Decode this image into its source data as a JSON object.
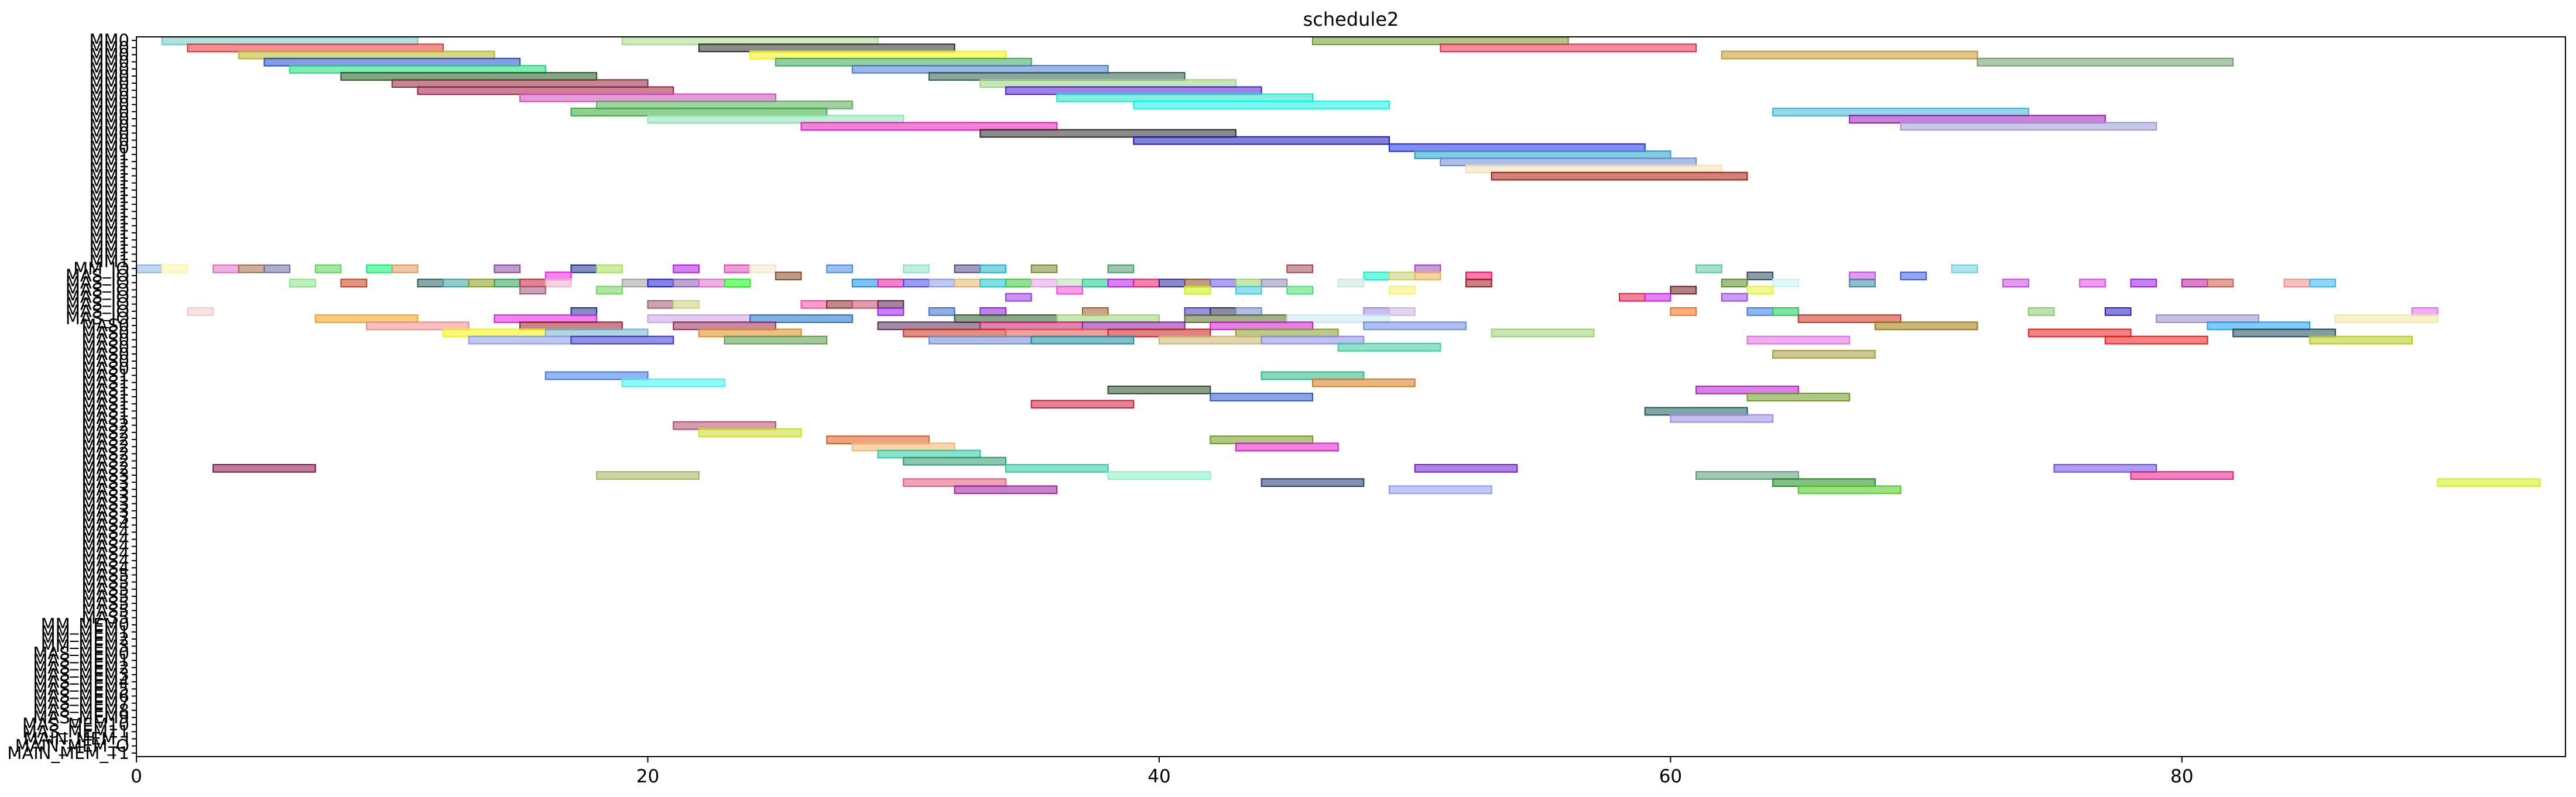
{
  "chart_data": {
    "type": "gantt",
    "title": "schedule2",
    "xlabel": "",
    "ylabel": "",
    "xlim": [
      0,
      95
    ],
    "grid": false,
    "x_ticks": [
      0,
      20,
      40,
      60,
      80
    ],
    "x_tick_labels": [
      "0",
      "20",
      "40",
      "60",
      "80"
    ],
    "rows": [
      "MM0",
      "MM0",
      "MM0",
      "MM0",
      "MM0",
      "MM0",
      "MM0",
      "MM0",
      "MM0",
      "MM0",
      "MM0",
      "MM0",
      "MM0",
      "MM0",
      "MM0",
      "MM0",
      "MM1",
      "MM1",
      "MM1",
      "MM1",
      "MM1",
      "MM1",
      "MM1",
      "MM1",
      "MM1",
      "MM1",
      "MM1",
      "MM1",
      "MM1",
      "MM1",
      "MM1",
      "MM1",
      "MM_IO",
      "MAS_IO",
      "MAS_IO",
      "MAS_IO",
      "MAS_IO",
      "MAS_IO",
      "MAS_IO",
      "MAS_IO",
      "MAS0",
      "MAS0",
      "MAS0",
      "MAS0",
      "MAS0",
      "MAS0",
      "MAS0",
      "MAS1",
      "MAS1",
      "MAS1",
      "MAS1",
      "MAS1",
      "MAS1",
      "MAS1",
      "MAS2",
      "MAS2",
      "MAS2",
      "MAS2",
      "MAS2",
      "MAS2",
      "MAS2",
      "MAS3",
      "MAS3",
      "MAS3",
      "MAS3",
      "MAS3",
      "MAS3",
      "MAS3",
      "MAS4",
      "MAS4",
      "MAS4",
      "MAS4",
      "MAS4",
      "MAS4",
      "MAS4",
      "MAS5",
      "MAS5",
      "MAS5",
      "MAS5",
      "MAS5",
      "MAS5",
      "MAS5",
      "MM_MEM0",
      "MM_MEM1",
      "MM_MEM2",
      "MM_MEM3",
      "MAS_MEM0",
      "MAS_MEM1",
      "MAS_MEM2",
      "MAS_MEM3",
      "MAS_MEM4",
      "MAS_MEM5",
      "MAS_MEM6",
      "MAS_MEM7",
      "MAS_MEM8",
      "MAS_MEM9",
      "MAS_MEM10",
      "MAS_MEM11",
      "MAIN_MEM_I",
      "MAIN_MEM_O",
      "MAIN_MEM_T1"
    ],
    "tasks": [
      [
        0,
        1,
        11,
        "#6fc9c9"
      ],
      [
        0,
        19,
        29,
        "#a6d98a"
      ],
      [
        0,
        46,
        56,
        "#6b9a32"
      ],
      [
        1,
        2,
        12,
        "#e63434"
      ],
      [
        1,
        22,
        32,
        "#2b2b2b"
      ],
      [
        1,
        51,
        61,
        "#e0304e"
      ],
      [
        2,
        4,
        14,
        "#b5b52a"
      ],
      [
        2,
        24,
        34,
        "#f2f20f"
      ],
      [
        2,
        62,
        72,
        "#c4972e"
      ],
      [
        3,
        5,
        15,
        "#1f4fc9"
      ],
      [
        3,
        25,
        35,
        "#3aa85a"
      ],
      [
        3,
        72,
        82,
        "#6b9e68"
      ],
      [
        4,
        6,
        16,
        "#1fd97a"
      ],
      [
        4,
        28,
        38,
        "#4a7ad1"
      ],
      [
        5,
        8,
        18,
        "#1e5e1e"
      ],
      [
        5,
        31,
        41,
        "#2b5c4a"
      ],
      [
        6,
        10,
        20,
        "#8a2a3a"
      ],
      [
        6,
        33,
        43,
        "#9ad184"
      ],
      [
        7,
        11,
        21,
        "#9e1e40"
      ],
      [
        7,
        34,
        44,
        "#4a1ed1"
      ],
      [
        8,
        15,
        25,
        "#d14aba"
      ],
      [
        8,
        36,
        46,
        "#1fe3c9"
      ],
      [
        9,
        18,
        28,
        "#5aab5a"
      ],
      [
        9,
        39,
        49,
        "#0ff2e6"
      ],
      [
        10,
        17,
        27,
        "#3aa83a"
      ],
      [
        10,
        64,
        74,
        "#3ab5d1"
      ],
      [
        11,
        20,
        30,
        "#8ae3b5"
      ],
      [
        11,
        67,
        77,
        "#9a1eb5"
      ],
      [
        12,
        26,
        36,
        "#e61eb5"
      ],
      [
        12,
        69,
        79,
        "#9a9ad1"
      ],
      [
        13,
        33,
        43,
        "#2b2b2b"
      ],
      [
        14,
        39,
        49,
        "#1a1ab5"
      ],
      [
        15,
        49,
        59,
        "#1f2fe3"
      ],
      [
        16,
        50,
        60,
        "#1fa0c9"
      ],
      [
        17,
        51,
        61,
        "#6a8ad1"
      ],
      [
        18,
        52,
        62,
        "#f2e0b5"
      ],
      [
        19,
        53,
        63,
        "#a01e0f"
      ],
      [
        32,
        0,
        1,
        "#8ab5e3"
      ],
      [
        32,
        1,
        2,
        "#fff5a0"
      ],
      [
        32,
        3,
        4,
        "#e06ec9"
      ],
      [
        32,
        4,
        5,
        "#a06e4a"
      ],
      [
        32,
        5,
        6,
        "#6e6e9e"
      ],
      [
        32,
        7,
        8,
        "#5ad15a"
      ],
      [
        32,
        9,
        10,
        "#0ff26e"
      ],
      [
        32,
        10,
        11,
        "#e09a5a"
      ],
      [
        32,
        14,
        15,
        "#8a4aa0"
      ],
      [
        32,
        17,
        18,
        "#1e2f8a"
      ],
      [
        32,
        18,
        19,
        "#a6e05a"
      ],
      [
        32,
        21,
        22,
        "#b51ee3"
      ],
      [
        32,
        23,
        24,
        "#e04ab5"
      ],
      [
        32,
        24,
        25,
        "#f2e6c9"
      ],
      [
        32,
        27,
        28,
        "#4a8ae3"
      ],
      [
        32,
        30,
        31,
        "#8ae3c9"
      ],
      [
        32,
        32,
        33,
        "#5a4a8a"
      ],
      [
        32,
        33,
        34,
        "#1fb5c9"
      ],
      [
        32,
        35,
        36,
        "#7a8a2a"
      ],
      [
        32,
        38,
        39,
        "#4a9a6e"
      ],
      [
        32,
        45,
        46,
        "#a04a5a"
      ],
      [
        32,
        50,
        51,
        "#9a4ab5"
      ],
      [
        32,
        61,
        62,
        "#5ac9a0"
      ],
      [
        32,
        71,
        72,
        "#6ed1e0"
      ],
      [
        33,
        16,
        17,
        "#f21ee0"
      ],
      [
        33,
        25,
        26,
        "#8a4a2a"
      ],
      [
        33,
        48,
        49,
        "#0ff2c9"
      ],
      [
        33,
        49,
        50,
        "#c9d16e"
      ],
      [
        33,
        50,
        51,
        "#e6b55a"
      ],
      [
        33,
        52,
        53,
        "#f20f6e"
      ],
      [
        33,
        63,
        64,
        "#2b4a5a"
      ],
      [
        33,
        67,
        68,
        "#c94ae3"
      ],
      [
        33,
        69,
        70,
        "#3a5ae3"
      ],
      [
        34,
        6,
        7,
        "#8ae38a"
      ],
      [
        34,
        8,
        9,
        "#c9401e"
      ],
      [
        34,
        11,
        12,
        "#2b5c5c"
      ],
      [
        34,
        12,
        13,
        "#3aa0a0"
      ],
      [
        34,
        13,
        14,
        "#8a9a1e"
      ],
      [
        34,
        14,
        15,
        "#2ba05a"
      ],
      [
        34,
        15,
        16,
        "#c91e3a"
      ],
      [
        34,
        16,
        17,
        "#e6b5c9"
      ],
      [
        34,
        19,
        20,
        "#a0a0a0"
      ],
      [
        34,
        20,
        21,
        "#1e1ec9"
      ],
      [
        34,
        21,
        22,
        "#8a5ab5"
      ],
      [
        34,
        22,
        23,
        "#e06ec9"
      ],
      [
        34,
        23,
        24,
        "#1ef21e"
      ],
      [
        34,
        28,
        29,
        "#1e8ae3"
      ],
      [
        34,
        29,
        30,
        "#e01e9e"
      ],
      [
        34,
        30,
        31,
        "#4a4ae3"
      ],
      [
        34,
        31,
        32,
        "#8a9ae3"
      ],
      [
        34,
        32,
        33,
        "#e6b56e"
      ],
      [
        34,
        33,
        34,
        "#1ec9c9"
      ],
      [
        34,
        34,
        35,
        "#3ac93a"
      ],
      [
        34,
        35,
        36,
        "#e0a0e3"
      ],
      [
        34,
        36,
        37,
        "#b5e0b5"
      ],
      [
        34,
        37,
        38,
        "#1ec98a"
      ],
      [
        34,
        38,
        39,
        "#b51ee3"
      ],
      [
        34,
        39,
        40,
        "#e61e6e"
      ],
      [
        34,
        40,
        41,
        "#2b2b9e"
      ],
      [
        34,
        41,
        42,
        "#8a4a1e"
      ],
      [
        34,
        42,
        43,
        "#6e5ae3"
      ],
      [
        34,
        43,
        44,
        "#9ad16e"
      ],
      [
        34,
        44,
        45,
        "#8a8ab5"
      ],
      [
        34,
        47,
        48,
        "#c9e6e0"
      ],
      [
        34,
        52,
        53,
        "#9a1e1e"
      ],
      [
        34,
        62,
        63,
        "#5a8a2a"
      ],
      [
        34,
        64,
        65,
        "#c9f2f2"
      ],
      [
        34,
        67,
        68,
        "#3a8aa0"
      ],
      [
        34,
        73,
        74,
        "#c94ae3"
      ],
      [
        34,
        76,
        77,
        "#e04ae3"
      ],
      [
        34,
        78,
        79,
        "#9a1ee3"
      ],
      [
        34,
        80,
        81,
        "#b51e9e"
      ],
      [
        34,
        81,
        82,
        "#c95a4a"
      ],
      [
        34,
        84,
        85,
        "#f28a8a"
      ],
      [
        34,
        85,
        86,
        "#3ab5f2"
      ],
      [
        35,
        15,
        16,
        "#9e5a7a"
      ],
      [
        35,
        18,
        19,
        "#6ed15a"
      ],
      [
        35,
        36,
        37,
        "#f24ae0"
      ],
      [
        35,
        41,
        42,
        "#c9f20f"
      ],
      [
        35,
        43,
        44,
        "#3ac9e0"
      ],
      [
        35,
        45,
        46,
        "#4ae06e"
      ],
      [
        35,
        49,
        50,
        "#f2f26e"
      ],
      [
        35,
        60,
        61,
        "#6e1e1e"
      ],
      [
        35,
        63,
        64,
        "#e6f23a"
      ],
      [
        36,
        34,
        35,
        "#9a3ae3"
      ],
      [
        36,
        58,
        59,
        "#e01e4a"
      ],
      [
        36,
        59,
        60,
        "#c91ee3"
      ],
      [
        36,
        62,
        63,
        "#9a4ae3"
      ],
      [
        37,
        20,
        21,
        "#9e5a6e"
      ],
      [
        37,
        21,
        22,
        "#c9d17a"
      ],
      [
        37,
        26,
        27,
        "#f24aa0"
      ],
      [
        37,
        27,
        28,
        "#8a2a2a"
      ],
      [
        37,
        28,
        29,
        "#c94a6e"
      ],
      [
        37,
        29,
        30,
        "#5a1e4a"
      ],
      [
        38,
        2,
        3,
        "#f2c9c9"
      ],
      [
        38,
        17,
        18,
        "#1e2f8a"
      ],
      [
        38,
        29,
        30,
        "#9a1ee3"
      ],
      [
        38,
        31,
        32,
        "#3a6ec9"
      ],
      [
        38,
        33,
        34,
        "#8a1ed1"
      ],
      [
        38,
        37,
        38,
        "#a05a2a"
      ],
      [
        38,
        41,
        42,
        "#4a3ab5"
      ],
      [
        38,
        42,
        43,
        "#2b2b5a"
      ],
      [
        38,
        43,
        44,
        "#6e8ad1"
      ],
      [
        38,
        48,
        49,
        "#9a8ae3"
      ],
      [
        38,
        49,
        50,
        "#c9b5e3"
      ],
      [
        38,
        60,
        61,
        "#f2701e"
      ],
      [
        38,
        63,
        64,
        "#3a7ae3"
      ],
      [
        38,
        64,
        65,
        "#1ec95a"
      ],
      [
        38,
        74,
        75,
        "#8ac96e"
      ],
      [
        38,
        77,
        78,
        "#2b1eb5"
      ],
      [
        38,
        89,
        90,
        "#e06ee3"
      ],
      [
        39,
        7,
        11,
        "#f2a01e"
      ],
      [
        39,
        14,
        18,
        "#e61ee0"
      ],
      [
        39,
        20,
        24,
        "#c9a0e3"
      ],
      [
        39,
        24,
        28,
        "#1e6ec9"
      ],
      [
        39,
        32,
        36,
        "#2b5a2b"
      ],
      [
        39,
        36,
        40,
        "#9ad16e"
      ],
      [
        39,
        41,
        45,
        "#5a6e2b"
      ],
      [
        39,
        45,
        49,
        "#c9e6f2"
      ],
      [
        39,
        65,
        69,
        "#c9301e"
      ],
      [
        39,
        79,
        83,
        "#9a8ac9"
      ],
      [
        39,
        86,
        90,
        "#f2e6a0"
      ],
      [
        40,
        9,
        13,
        "#f28a8a"
      ],
      [
        40,
        15,
        19,
        "#9a1e2b"
      ],
      [
        40,
        21,
        25,
        "#9a2b5a"
      ],
      [
        40,
        29,
        33,
        "#5a2b5a"
      ],
      [
        40,
        33,
        37,
        "#c91e6e"
      ],
      [
        40,
        37,
        41,
        "#8a1ea0"
      ],
      [
        40,
        42,
        46,
        "#c91ec9"
      ],
      [
        40,
        48,
        52,
        "#6e8ae3"
      ],
      [
        40,
        68,
        72,
        "#9e7a0f"
      ],
      [
        40,
        81,
        85,
        "#1e9ef2"
      ],
      [
        41,
        12,
        16,
        "#f2f20f"
      ],
      [
        41,
        16,
        20,
        "#6eb5c9"
      ],
      [
        41,
        22,
        26,
        "#e08a1e"
      ],
      [
        41,
        30,
        34,
        "#c9301e"
      ],
      [
        41,
        34,
        38,
        "#e05a4a"
      ],
      [
        41,
        38,
        42,
        "#c91e1e"
      ],
      [
        41,
        43,
        47,
        "#8a9a2b"
      ],
      [
        41,
        53,
        57,
        "#9ad16e"
      ],
      [
        41,
        74,
        78,
        "#e61e1e"
      ],
      [
        41,
        82,
        86,
        "#1e4a5a"
      ],
      [
        42,
        13,
        17,
        "#8a9ae3"
      ],
      [
        42,
        17,
        21,
        "#3a3ac9"
      ],
      [
        42,
        23,
        27,
        "#5a9a4a"
      ],
      [
        42,
        31,
        35,
        "#6e8ad1"
      ],
      [
        42,
        35,
        39,
        "#1e8aa0"
      ],
      [
        42,
        40,
        44,
        "#c9b56e"
      ],
      [
        42,
        44,
        48,
        "#8a8ae3"
      ],
      [
        42,
        63,
        67,
        "#e06ee0"
      ],
      [
        42,
        77,
        81,
        "#e61e1e"
      ],
      [
        42,
        85,
        89,
        "#b5c91e"
      ],
      [
        43,
        47,
        51,
        "#3ac9a0"
      ],
      [
        44,
        64,
        68,
        "#a09a3a"
      ],
      [
        47,
        16,
        20,
        "#3a7ae3"
      ],
      [
        47,
        44,
        48,
        "#2bb58a"
      ],
      [
        48,
        19,
        23,
        "#3af2f2"
      ],
      [
        48,
        46,
        50,
        "#d17a1e"
      ],
      [
        49,
        38,
        42,
        "#2b4a2b"
      ],
      [
        49,
        61,
        65,
        "#b51ec9"
      ],
      [
        50,
        42,
        46,
        "#2b5ac9"
      ],
      [
        50,
        63,
        67,
        "#6e9a1e"
      ],
      [
        51,
        35,
        39,
        "#c91e3a"
      ],
      [
        52,
        59,
        63,
        "#1e5a5a"
      ],
      [
        53,
        60,
        64,
        "#9a8ae3"
      ],
      [
        54,
        21,
        25,
        "#b54a6e"
      ],
      [
        55,
        22,
        26,
        "#c9e01e"
      ],
      [
        56,
        27,
        31,
        "#e05a1e"
      ],
      [
        56,
        42,
        46,
        "#6e9a1e"
      ],
      [
        57,
        28,
        32,
        "#f2b56e"
      ],
      [
        57,
        43,
        47,
        "#e01ec9"
      ],
      [
        58,
        29,
        33,
        "#2bc9a0"
      ],
      [
        59,
        30,
        34,
        "#2b9a6e"
      ],
      [
        60,
        3,
        7,
        "#8a0f4a"
      ],
      [
        60,
        34,
        38,
        "#2bc9a0"
      ],
      [
        60,
        50,
        54,
        "#6e1ec9"
      ],
      [
        60,
        75,
        79,
        "#6e4ae3"
      ],
      [
        61,
        18,
        22,
        "#a0b55a"
      ],
      [
        61,
        38,
        42,
        "#8af2c9"
      ],
      [
        61,
        61,
        65,
        "#5a9a7a"
      ],
      [
        61,
        78,
        82,
        "#e01e8a"
      ],
      [
        62,
        30,
        34,
        "#e05a7a"
      ],
      [
        62,
        44,
        48,
        "#1e3a6e"
      ],
      [
        62,
        64,
        68,
        "#1e8a1e"
      ],
      [
        62,
        90,
        94,
        "#d1f20f"
      ],
      [
        63,
        32,
        36,
        "#9a1e9e"
      ],
      [
        63,
        49,
        53,
        "#8a9af2"
      ],
      [
        63,
        65,
        69,
        "#4ac91e"
      ]
    ]
  }
}
